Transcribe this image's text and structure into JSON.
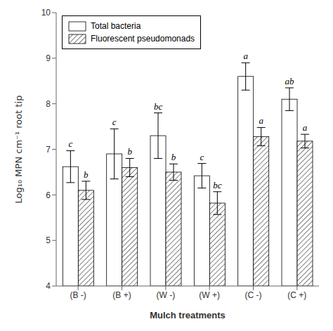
{
  "chart_data": {
    "type": "bar",
    "categories": [
      "(B -)",
      "(B +)",
      "(W -)",
      "(W +)",
      "(C -)",
      "(C +)"
    ],
    "series": [
      {
        "name": "Total bacteria",
        "color": "white",
        "values": [
          6.62,
          6.9,
          7.3,
          6.42,
          8.6,
          8.1
        ],
        "errors": [
          0.35,
          0.55,
          0.5,
          0.27,
          0.3,
          0.25
        ],
        "labels": [
          "c",
          "c",
          "bc",
          "c",
          "a",
          "ab"
        ]
      },
      {
        "name": "Fluorescent pseudomonads",
        "color": "white",
        "values": [
          6.1,
          6.6,
          6.5,
          5.82,
          7.28,
          7.18
        ],
        "errors": [
          0.2,
          0.2,
          0.18,
          0.25,
          0.2,
          0.15
        ],
        "labels": [
          "b",
          "b",
          "b",
          "bc",
          "a",
          "a"
        ]
      }
    ],
    "ylabel": "Log₁₀ MPN cm⁻¹ root tip",
    "xlabel": "Mulch treatments",
    "ylim": [
      4,
      10
    ],
    "yticks": [
      4,
      5,
      6,
      7,
      8,
      9,
      10
    ],
    "grid": false,
    "legend": "upper left"
  }
}
